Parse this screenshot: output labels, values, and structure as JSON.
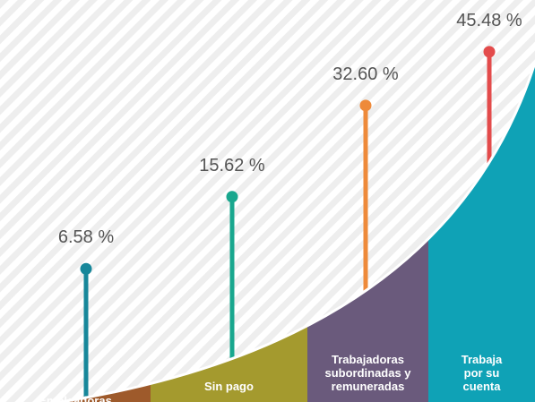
{
  "chart_data": {
    "type": "lollipop",
    "categories": [
      "Empleadoras",
      "Sin pago",
      "Trabajadoras\nsubordinadas y\nremuneradas",
      "Trabaja\npor su\ncuenta"
    ],
    "values": [
      6.58,
      15.62,
      32.6,
      45.48
    ],
    "value_labels": [
      "6.58 %",
      "15.62 %",
      "32.60 %",
      "45.48 %"
    ],
    "colors": [
      "#9e5a2b",
      "#a49a2e",
      "#6a5a7c",
      "#0fa2b6"
    ],
    "marker_colors": [
      "#17879a",
      "#19a78e",
      "#ee8a3a",
      "#e34b4b"
    ]
  }
}
